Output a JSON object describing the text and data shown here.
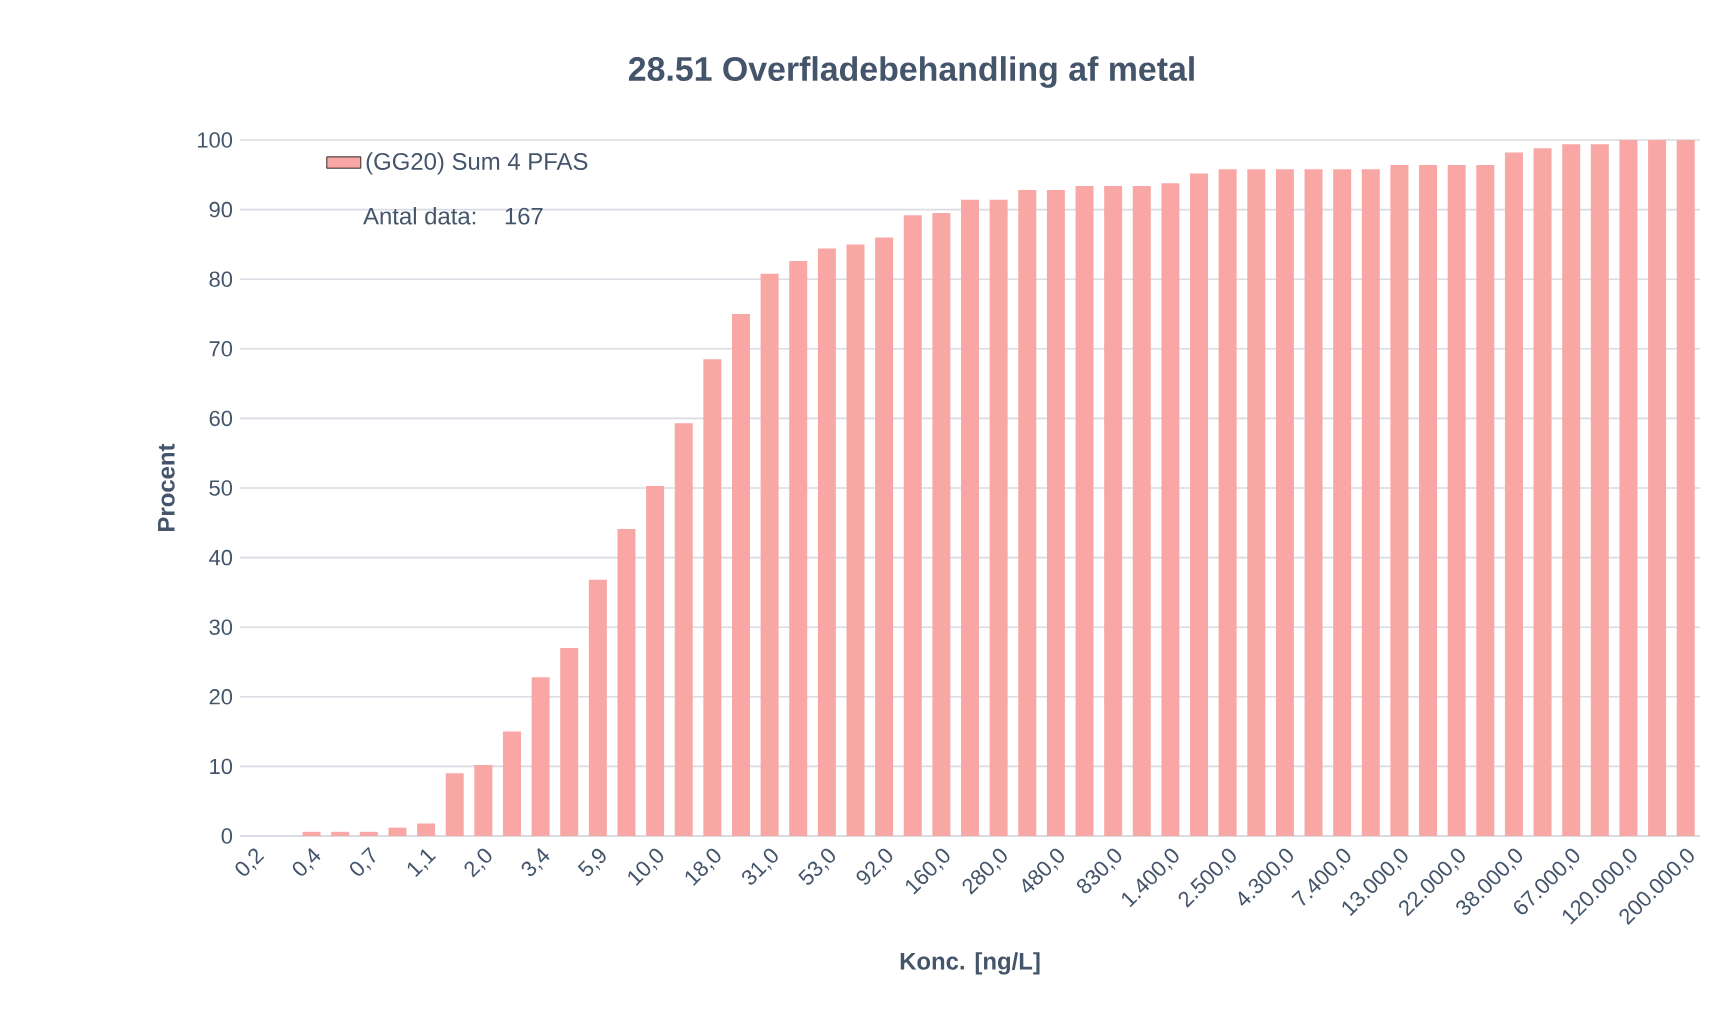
{
  "chart_data": {
    "type": "bar",
    "title": "28.51 Overfladebehandling af metal",
    "xlabel": "Konc. [ng/L]",
    "ylabel": "Procent",
    "categories": [
      "0,2",
      null,
      "0,4",
      null,
      "0,7",
      null,
      "1,1",
      null,
      "2,0",
      null,
      "3,4",
      null,
      "5,9",
      null,
      "10,0",
      null,
      "18,0",
      null,
      "31,0",
      null,
      "53,0",
      null,
      "92,0",
      null,
      "160,0",
      null,
      "280,0",
      null,
      "480,0",
      null,
      "830,0",
      null,
      "1.400,0",
      null,
      "2.500,0",
      null,
      "4.300,0",
      null,
      "7.400,0",
      null,
      "13.000,0",
      null,
      "22.000,0",
      null,
      "38.000,0",
      null,
      "67.000,0",
      null,
      "120.000,0",
      null,
      "200.000,0"
    ],
    "series": [
      {
        "name": "(GG20) Sum 4 PFAS",
        "color": "#f9a7a5",
        "values": [
          0,
          0,
          0.6,
          0.6,
          0.6,
          1.2,
          1.8,
          9.0,
          10.2,
          15.0,
          22.8,
          27.0,
          36.8,
          44.1,
          50.3,
          59.3,
          68.5,
          75.0,
          80.8,
          82.6,
          84.4,
          85.0,
          86.0,
          89.2,
          89.5,
          91.4,
          91.4,
          92.8,
          92.8,
          93.4,
          93.4,
          93.4,
          93.8,
          95.2,
          95.8,
          95.8,
          95.8,
          95.8,
          95.8,
          95.8,
          96.4,
          96.4,
          96.4,
          96.4,
          98.2,
          98.8,
          99.4,
          99.4,
          100,
          100,
          100
        ]
      }
    ],
    "ylim": [
      0,
      100
    ],
    "yticks": [
      0,
      10,
      20,
      30,
      40,
      50,
      60,
      70,
      80,
      90,
      100
    ],
    "grid": "y",
    "legend": "top left",
    "annotations": [
      "Antal data:    167"
    ]
  }
}
